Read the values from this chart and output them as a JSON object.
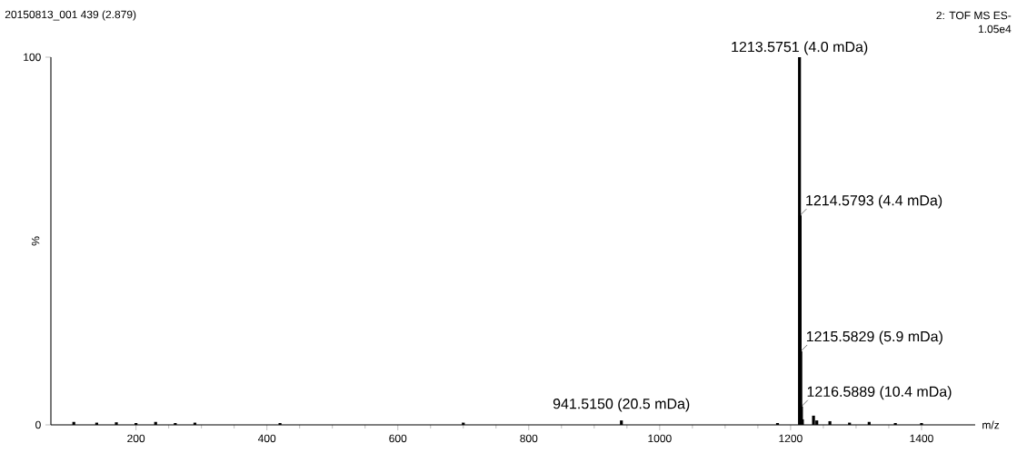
{
  "chart_data": {
    "type": "bar",
    "title": "20150813_001 439 (2.879)",
    "xlabel": "m/z",
    "ylabel": "%",
    "x": [
      105,
      140,
      170,
      200,
      230,
      260,
      290,
      420,
      700,
      941.515,
      1180,
      1213.5751,
      1214.5793,
      1215.5829,
      1216.5889,
      1218,
      1235,
      1240,
      1260,
      1290,
      1320,
      1360,
      1400
    ],
    "values": [
      0.8,
      0.6,
      0.7,
      0.5,
      0.8,
      0.5,
      0.6,
      0.5,
      0.6,
      1.2,
      0.5,
      100,
      57,
      20,
      5,
      1.5,
      2.5,
      1.2,
      1,
      0.6,
      0.8,
      0.5,
      0.5
    ],
    "color": "#000000",
    "xlim": [
      70,
      1482
    ],
    "ylim": [
      0,
      100
    ],
    "xticks": [
      200,
      400,
      600,
      800,
      1000,
      1200,
      1400
    ],
    "yticks": [
      0,
      100
    ],
    "annotations": [
      "2: TOF MS ES-",
      "1.05e4",
      {
        "text": "941.5150 (20.5 mDa)",
        "x": 941.515,
        "y": 1.2
      },
      {
        "text": "1213.5751 (4.0 mDa)",
        "x": 1213.5751,
        "y": 100
      },
      {
        "text": "1214.5793 (4.4 mDa)",
        "x": 1214.5793,
        "y": 57
      },
      {
        "text": "1215.5829 (5.9 mDa)",
        "x": 1215.5829,
        "y": 20
      },
      {
        "text": "1216.5889 (10.4 mDa)",
        "x": 1216.5889,
        "y": 5
      }
    ]
  }
}
